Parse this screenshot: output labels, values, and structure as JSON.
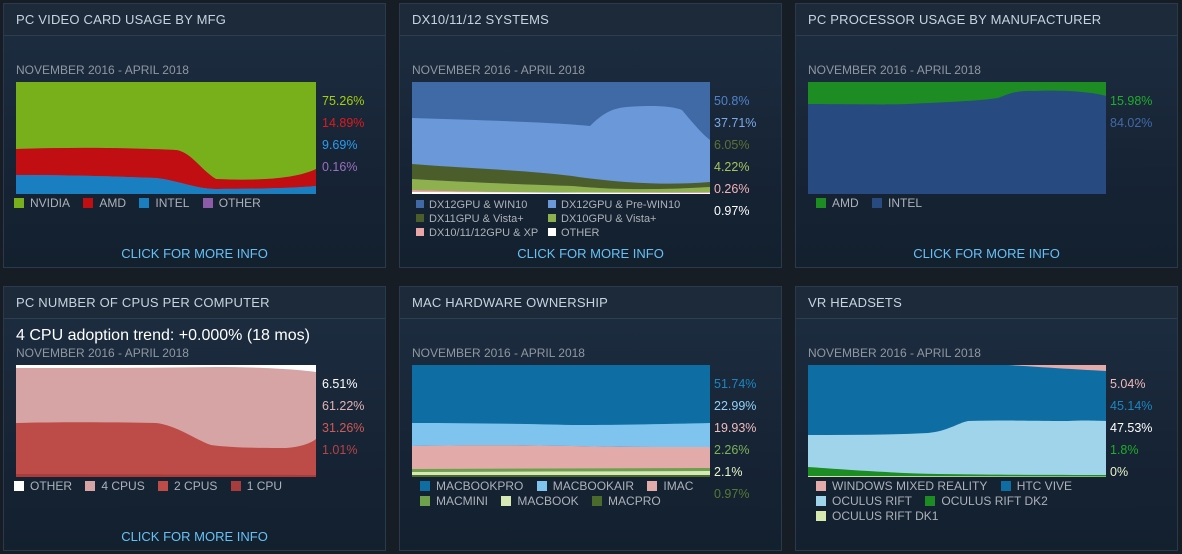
{
  "panels": [
    {
      "title": "PC VIDEO CARD USAGE BY MFG",
      "date_range": "NOVEMBER 2016 - APRIL 2018",
      "cta": "CLICK FOR MORE INFO",
      "chart_data": {
        "type": "area",
        "stacked": true,
        "x": [
          "NOVEMBER 2016",
          "APRIL 2018"
        ],
        "series": [
          {
            "name": "NVIDIA",
            "color": "#77b01a",
            "latest": 75.26
          },
          {
            "name": "AMD",
            "color": "#c00e12",
            "latest": 14.89
          },
          {
            "name": "INTEL",
            "color": "#1a7fc1",
            "latest": 9.69
          },
          {
            "name": "OTHER",
            "color": "#8d5ca8",
            "latest": 0.16
          }
        ]
      },
      "percentages": [
        {
          "text": "75.26%",
          "color": "#a4d007"
        },
        {
          "text": "14.89%",
          "color": "#e01a1a"
        },
        {
          "text": "9.69%",
          "color": "#2a9df0"
        },
        {
          "text": "0.16%",
          "color": "#9a6fbf"
        }
      ],
      "legend": [
        {
          "label": "NVIDIA",
          "color": "#77b01a"
        },
        {
          "label": "AMD",
          "color": "#c00e12"
        },
        {
          "label": "INTEL",
          "color": "#1a7fc1"
        },
        {
          "label": "OTHER",
          "color": "#8d5ca8"
        }
      ]
    },
    {
      "title": "DX10/11/12 SYSTEMS",
      "date_range": "NOVEMBER 2016 - APRIL 2018",
      "cta": "CLICK FOR MORE INFO",
      "chart_data": {
        "type": "area",
        "stacked": true,
        "x": [
          "NOVEMBER 2016",
          "APRIL 2018"
        ],
        "series": [
          {
            "name": "DX12GPU & WIN10",
            "color": "#3f6aa6",
            "latest": 50.8
          },
          {
            "name": "DX12GPU & Pre-WIN10",
            "color": "#6a98d9",
            "latest": 37.71
          },
          {
            "name": "DX11GPU & Vista+",
            "color": "#4b5d2a",
            "latest": 6.05
          },
          {
            "name": "DX10GPU & Vista+",
            "color": "#8fb04f",
            "latest": 4.22
          },
          {
            "name": "DX10/11/12GPU & XP",
            "color": "#e8a6a6",
            "latest": 0.26
          },
          {
            "name": "OTHER",
            "color": "#ffffff",
            "latest": 0.97
          }
        ]
      },
      "percentages": [
        {
          "text": "50.8%",
          "color": "#4f83c9"
        },
        {
          "text": "37.71%",
          "color": "#7aaae8"
        },
        {
          "text": "6.05%",
          "color": "#5d7233"
        },
        {
          "text": "4.22%",
          "color": "#a4c55e"
        },
        {
          "text": "0.26%",
          "color": "#f2b5b5"
        },
        {
          "text": "0.97%",
          "color": "#ffffff"
        }
      ],
      "legend": [
        {
          "label": "DX12GPU & WIN10",
          "color": "#3f6aa6"
        },
        {
          "label": "DX12GPU & Pre-WIN10",
          "color": "#6a98d9"
        },
        {
          "label": "DX11GPU & Vista+",
          "color": "#4b5d2a"
        },
        {
          "label": "DX10GPU & Vista+",
          "color": "#8fb04f"
        },
        {
          "label": "DX10/11/12GPU & XP",
          "color": "#e8a6a6"
        },
        {
          "label": "OTHER",
          "color": "#ffffff"
        }
      ]
    },
    {
      "title": "PC PROCESSOR USAGE BY MANUFACTURER",
      "date_range": "NOVEMBER 2016 - APRIL 2018",
      "cta": "CLICK FOR MORE INFO",
      "chart_data": {
        "type": "area",
        "stacked": true,
        "x": [
          "NOVEMBER 2016",
          "APRIL 2018"
        ],
        "series": [
          {
            "name": "AMD",
            "color": "#1d8c23",
            "latest": 15.98
          },
          {
            "name": "INTEL",
            "color": "#274a80",
            "latest": 84.02
          }
        ]
      },
      "percentages": [
        {
          "text": "15.98%",
          "color": "#1eae29"
        },
        {
          "text": "84.02%",
          "color": "#3f6aa8"
        }
      ],
      "legend": [
        {
          "label": "AMD",
          "color": "#1d8c23"
        },
        {
          "label": "INTEL",
          "color": "#274a80"
        }
      ]
    },
    {
      "title": "PC NUMBER OF CPUS PER COMPUTER",
      "trend": "4 CPU adoption trend: +0.000% (18 mos)",
      "date_range": "NOVEMBER 2016 - APRIL 2018",
      "cta": "CLICK FOR MORE INFO",
      "chart_data": {
        "type": "area",
        "stacked": true,
        "x": [
          "NOVEMBER 2016",
          "APRIL 2018"
        ],
        "series": [
          {
            "name": "OTHER",
            "color": "#ffffff",
            "latest": 6.51
          },
          {
            "name": "4 CPUS",
            "color": "#d6a4a4",
            "latest": 61.22
          },
          {
            "name": "2 CPUS",
            "color": "#bd4b47",
            "latest": 31.26
          },
          {
            "name": "1 CPU",
            "color": "#a83c3c",
            "latest": 1.01
          }
        ]
      },
      "percentages": [
        {
          "text": "6.51%",
          "color": "#ffffff"
        },
        {
          "text": "61.22%",
          "color": "#e1b2b2"
        },
        {
          "text": "31.26%",
          "color": "#d05a55"
        },
        {
          "text": "1.01%",
          "color": "#b74444"
        }
      ],
      "legend": [
        {
          "label": "OTHER",
          "color": "#ffffff"
        },
        {
          "label": "4 CPUS",
          "color": "#d6a4a4"
        },
        {
          "label": "2 CPUS",
          "color": "#bd4b47"
        },
        {
          "label": "1 CPU",
          "color": "#a83c3c"
        }
      ]
    },
    {
      "title": "MAC HARDWARE OWNERSHIP",
      "date_range": "NOVEMBER 2016 - APRIL 2018",
      "cta": "",
      "chart_data": {
        "type": "area",
        "stacked": true,
        "x": [
          "NOVEMBER 2016",
          "APRIL 2018"
        ],
        "series": [
          {
            "name": "MACBOOKPRO",
            "color": "#0e6ea3",
            "latest": 51.74
          },
          {
            "name": "MACBOOKAIR",
            "color": "#7fc4ef",
            "latest": 22.99
          },
          {
            "name": "IMAC",
            "color": "#e3aaaa",
            "latest": 19.93
          },
          {
            "name": "MACMINI",
            "color": "#6fa04b",
            "latest": 2.26
          },
          {
            "name": "MACBOOK",
            "color": "#d6e9b5",
            "latest": 2.1
          },
          {
            "name": "MACPRO",
            "color": "#4a6b2c",
            "latest": 0.97
          }
        ]
      },
      "percentages": [
        {
          "text": "51.74%",
          "color": "#1c86c2"
        },
        {
          "text": "22.99%",
          "color": "#8fd0f7"
        },
        {
          "text": "19.93%",
          "color": "#f0bcbc"
        },
        {
          "text": "2.26%",
          "color": "#7cb357"
        },
        {
          "text": "2.1%",
          "color": "#e6f5c8"
        },
        {
          "text": "0.97%",
          "color": "#557a33"
        }
      ],
      "legend": [
        {
          "label": "MACBOOKPRO",
          "color": "#0e6ea3"
        },
        {
          "label": "MACBOOKAIR",
          "color": "#7fc4ef"
        },
        {
          "label": "IMAC",
          "color": "#e3aaaa"
        },
        {
          "label": "MACMINI",
          "color": "#6fa04b"
        },
        {
          "label": "MACBOOK",
          "color": "#d6e9b5"
        },
        {
          "label": "MACPRO",
          "color": "#4a6b2c"
        }
      ]
    },
    {
      "title": "VR HEADSETS",
      "date_range": "NOVEMBER 2016 - APRIL 2018",
      "cta": "",
      "chart_data": {
        "type": "area",
        "stacked": true,
        "x": [
          "NOVEMBER 2016",
          "APRIL 2018"
        ],
        "series": [
          {
            "name": "WINDOWS MIXED REALITY",
            "color": "#e5aaaa",
            "latest": 5.04
          },
          {
            "name": "HTC VIVE",
            "color": "#0e6ea3",
            "latest": 45.14
          },
          {
            "name": "OCULUS RIFT",
            "color": "#9fd4ea",
            "latest": 47.53
          },
          {
            "name": "OCULUS RIFT DK2",
            "color": "#1d8c23",
            "latest": 1.8
          },
          {
            "name": "OCULUS RIFT DK1",
            "color": "#d6eab0",
            "latest": 0
          }
        ]
      },
      "percentages": [
        {
          "text": "5.04%",
          "color": "#f2b9b9"
        },
        {
          "text": "45.14%",
          "color": "#1c86c2"
        },
        {
          "text": "47.53%",
          "color": "#ffffff"
        },
        {
          "text": "1.8%",
          "color": "#1eae29"
        },
        {
          "text": "0%",
          "color": "#e6f5c8"
        }
      ],
      "legend": [
        {
          "label": "WINDOWS MIXED REALITY",
          "color": "#e5aaaa"
        },
        {
          "label": "HTC VIVE",
          "color": "#0e6ea3"
        },
        {
          "label": "OCULUS RIFT",
          "color": "#9fd4ea"
        },
        {
          "label": "OCULUS RIFT DK2",
          "color": "#1d8c23"
        },
        {
          "label": "OCULUS RIFT DK1",
          "color": "#d6eab0"
        }
      ]
    }
  ]
}
